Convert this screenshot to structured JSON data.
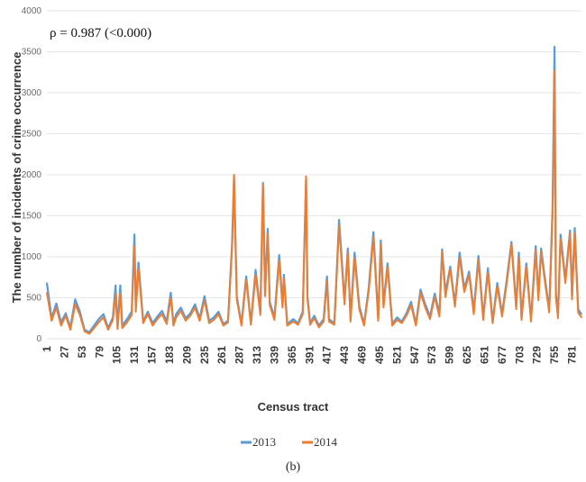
{
  "chart_data": {
    "type": "line",
    "annotation": "ρ = 0.987 (<0.000)",
    "ylabel": "The number of incidents of crime occurrence",
    "xlabel": "Census tract",
    "caption": "(b)",
    "ylim": [
      0,
      4000
    ],
    "yticks": [
      0,
      500,
      1000,
      1500,
      2000,
      2500,
      3000,
      3500,
      4000
    ],
    "xlim": [
      1,
      795
    ],
    "x_tick_labels": [
      "1",
      "27",
      "53",
      "79",
      "105",
      "131",
      "157",
      "183",
      "209",
      "235",
      "261",
      "287",
      "313",
      "339",
      "365",
      "391",
      "417",
      "443",
      "469",
      "495",
      "521",
      "547",
      "573",
      "599",
      "625",
      "651",
      "677",
      "703",
      "729",
      "755",
      "781"
    ],
    "grid": "horizontal",
    "legend_position": "bottom",
    "series": [
      {
        "name": "2013",
        "color": "#5b9bd5",
        "x": [
          1,
          8,
          15,
          22,
          29,
          36,
          43,
          50,
          57,
          64,
          71,
          78,
          85,
          92,
          99,
          103,
          106,
          110,
          113,
          120,
          127,
          131,
          133,
          137,
          144,
          151,
          158,
          165,
          172,
          179,
          185,
          189,
          193,
          200,
          207,
          214,
          221,
          228,
          235,
          242,
          249,
          256,
          263,
          270,
          276,
          279,
          283,
          290,
          297,
          304,
          311,
          318,
          322,
          325,
          329,
          332,
          339,
          346,
          351,
          353,
          358,
          367,
          374,
          381,
          386,
          388,
          392,
          398,
          405,
          412,
          417,
          420,
          428,
          435,
          440,
          443,
          448,
          452,
          458,
          465,
          472,
          479,
          486,
          493,
          497,
          501,
          507,
          514,
          521,
          528,
          535,
          542,
          549,
          556,
          563,
          570,
          577,
          584,
          588,
          593,
          600,
          607,
          614,
          621,
          628,
          635,
          642,
          649,
          656,
          663,
          670,
          677,
          684,
          691,
          698,
          702,
          706,
          713,
          720,
          727,
          731,
          735,
          740,
          747,
          752,
          755,
          757,
          760,
          764,
          771,
          778,
          781,
          785,
          790,
          795
        ],
        "values": [
          680,
          250,
          430,
          200,
          310,
          140,
          480,
          330,
          110,
          80,
          160,
          240,
          300,
          130,
          260,
          650,
          140,
          650,
          160,
          240,
          330,
          1270,
          380,
          930,
          210,
          330,
          190,
          270,
          340,
          210,
          560,
          180,
          300,
          380,
          250,
          310,
          420,
          250,
          520,
          220,
          260,
          330,
          180,
          220,
          1150,
          1980,
          520,
          180,
          760,
          190,
          840,
          320,
          1900,
          580,
          1340,
          450,
          260,
          1020,
          410,
          780,
          180,
          240,
          190,
          330,
          1950,
          520,
          190,
          280,
          160,
          240,
          760,
          240,
          190,
          1450,
          830,
          460,
          1100,
          240,
          1050,
          400,
          180,
          620,
          1300,
          250,
          1200,
          420,
          920,
          180,
          260,
          210,
          310,
          450,
          180,
          600,
          420,
          270,
          550,
          300,
          1090,
          560,
          880,
          420,
          1050,
          610,
          820,
          340,
          1010,
          260,
          860,
          210,
          680,
          300,
          720,
          1180,
          400,
          1050,
          260,
          920,
          240,
          1130,
          520,
          1100,
          780,
          350,
          1590,
          3560,
          560,
          280,
          1270,
          720,
          1320,
          530,
          1350,
          360,
          300
        ],
        "note": "approximate key values digitized from the image"
      },
      {
        "name": "2014",
        "color": "#ed7d31",
        "x": [
          1,
          8,
          15,
          22,
          29,
          36,
          43,
          50,
          57,
          64,
          71,
          78,
          85,
          92,
          99,
          103,
          106,
          110,
          113,
          120,
          127,
          131,
          133,
          137,
          144,
          151,
          158,
          165,
          172,
          179,
          185,
          189,
          193,
          200,
          207,
          214,
          221,
          228,
          235,
          242,
          249,
          256,
          263,
          270,
          276,
          279,
          283,
          290,
          297,
          304,
          311,
          318,
          322,
          325,
          329,
          332,
          339,
          346,
          351,
          353,
          358,
          367,
          374,
          381,
          386,
          388,
          392,
          398,
          405,
          412,
          417,
          420,
          428,
          435,
          440,
          443,
          448,
          452,
          458,
          465,
          472,
          479,
          486,
          493,
          497,
          501,
          507,
          514,
          521,
          528,
          535,
          542,
          549,
          556,
          563,
          570,
          577,
          584,
          588,
          593,
          600,
          607,
          614,
          621,
          628,
          635,
          642,
          649,
          656,
          663,
          670,
          677,
          684,
          691,
          698,
          702,
          706,
          713,
          720,
          727,
          731,
          735,
          740,
          747,
          752,
          755,
          757,
          760,
          764,
          771,
          778,
          781,
          785,
          790,
          795
        ],
        "values": [
          560,
          220,
          380,
          160,
          280,
          110,
          420,
          290,
          90,
          60,
          130,
          200,
          260,
          110,
          230,
          540,
          120,
          560,
          130,
          200,
          290,
          1130,
          330,
          860,
          190,
          300,
          160,
          240,
          300,
          180,
          500,
          160,
          260,
          340,
          220,
          280,
          380,
          220,
          470,
          190,
          230,
          300,
          160,
          200,
          1100,
          2000,
          480,
          160,
          720,
          170,
          780,
          290,
          1880,
          520,
          1280,
          410,
          230,
          960,
          380,
          740,
          160,
          210,
          170,
          300,
          1980,
          480,
          170,
          250,
          140,
          210,
          700,
          210,
          170,
          1380,
          780,
          420,
          1050,
          210,
          990,
          360,
          160,
          580,
          1240,
          220,
          1150,
          380,
          880,
          160,
          230,
          190,
          280,
          410,
          160,
          560,
          380,
          240,
          510,
          270,
          1060,
          510,
          850,
          390,
          990,
          570,
          780,
          300,
          960,
          230,
          810,
          190,
          640,
          270,
          680,
          1150,
          360,
          1000,
          230,
          880,
          210,
          1080,
          470,
          1060,
          740,
          320,
          1510,
          3270,
          510,
          250,
          1220,
          680,
          1280,
          480,
          1300,
          320,
          260
        ],
        "note": "approximate key values digitized from the image"
      }
    ]
  }
}
